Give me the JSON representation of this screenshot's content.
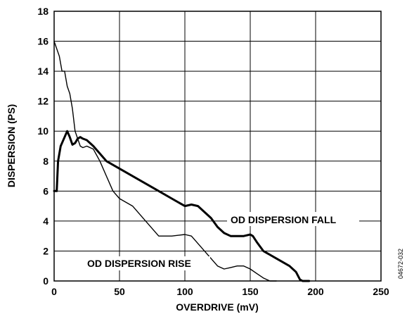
{
  "chart_data": {
    "type": "line",
    "xlabel": "OVERDRIVE (mV)",
    "ylabel": "DISPERSION (PS)",
    "xlim": [
      0,
      250
    ],
    "ylim": [
      0,
      18
    ],
    "x_ticks": [
      "0",
      "50",
      "100",
      "150",
      "200",
      "250"
    ],
    "y_ticks": [
      "0",
      "2",
      "4",
      "6",
      "8",
      "10",
      "12",
      "14",
      "16",
      "18"
    ],
    "grid": true,
    "figure_id": "04672-032",
    "annotations": [
      "OD DISPERSION FALL",
      "OD DISPERSION RISE"
    ],
    "series": [
      {
        "name": "OD DISPERSION FALL",
        "line": "thick",
        "x": [
          0,
          2,
          3,
          5,
          6,
          8,
          10,
          12,
          14,
          16,
          18,
          20,
          22,
          25,
          30,
          35,
          40,
          50,
          60,
          70,
          80,
          90,
          100,
          105,
          110,
          115,
          120,
          125,
          130,
          135,
          140,
          145,
          150,
          152,
          155,
          160,
          170,
          180,
          185,
          188,
          190,
          195
        ],
        "y": [
          6.0,
          6.0,
          8.0,
          9.0,
          9.2,
          9.6,
          10.0,
          9.6,
          9.1,
          9.2,
          9.5,
          9.6,
          9.5,
          9.4,
          9.0,
          8.5,
          8.0,
          7.5,
          7.0,
          6.5,
          6.0,
          5.5,
          5.0,
          5.1,
          5.0,
          4.6,
          4.2,
          3.6,
          3.2,
          3.0,
          3.0,
          3.0,
          3.1,
          3.0,
          2.6,
          2.0,
          1.5,
          1.0,
          0.6,
          0.1,
          0.0,
          0.0
        ]
      },
      {
        "name": "OD DISPERSION RISE",
        "line": "thin",
        "x": [
          0,
          2,
          4,
          6,
          8,
          10,
          12,
          14,
          16,
          18,
          20,
          22,
          25,
          30,
          35,
          40,
          45,
          50,
          60,
          70,
          80,
          90,
          100,
          105,
          110,
          115,
          120,
          125,
          130,
          135,
          140,
          145,
          150,
          155,
          160,
          165,
          170
        ],
        "y": [
          16.0,
          15.5,
          15.0,
          14.0,
          14.0,
          13.0,
          12.5,
          11.5,
          10.0,
          9.5,
          9.0,
          8.9,
          9.0,
          8.8,
          8.0,
          7.0,
          6.0,
          5.5,
          5.0,
          4.0,
          3.0,
          3.0,
          3.1,
          3.0,
          2.5,
          2.0,
          1.5,
          1.0,
          0.8,
          0.9,
          1.0,
          1.0,
          0.8,
          0.5,
          0.2,
          0.0,
          0.0
        ]
      }
    ]
  }
}
